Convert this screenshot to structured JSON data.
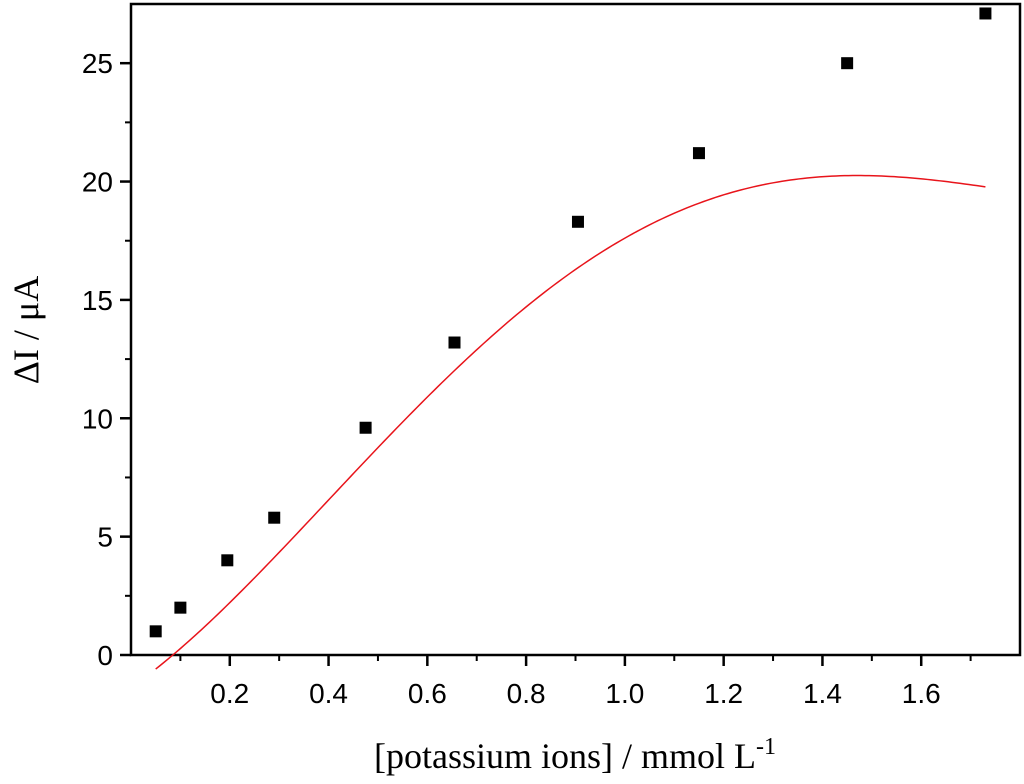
{
  "chart_data": {
    "type": "scatter",
    "xlabel": "[potassium ions] / mmol L",
    "xlabel_sup": "-1",
    "ylabel": "ΔI / μA",
    "xlim": [
      0.0,
      1.8
    ],
    "ylim": [
      0,
      27.5
    ],
    "x_ticks": [
      0.2,
      0.4,
      0.6,
      0.8,
      1.0,
      1.2,
      1.4,
      1.6
    ],
    "x_tick_labels": [
      "0.2",
      "0.4",
      "0.6",
      "0.8",
      "1.0",
      "1.2",
      "1.4",
      "1.6"
    ],
    "y_ticks": [
      0,
      5,
      10,
      15,
      20,
      25
    ],
    "y_tick_labels": [
      "0",
      "5",
      "10",
      "15",
      "20",
      "25"
    ],
    "grid": false,
    "series": [
      {
        "marker": "square",
        "color": "#000000",
        "x": [
          0.05,
          0.1,
          0.195,
          0.29,
          0.475,
          0.655,
          0.905,
          1.15,
          1.45,
          1.73
        ],
        "y": [
          1.0,
          2.0,
          4.0,
          5.8,
          9.6,
          13.2,
          18.3,
          21.2,
          25.0,
          27.1
        ]
      }
    ],
    "fit_curve": {
      "color": "#e8141b",
      "coefficients": [
        -1.37,
        14.55,
        20.87,
        -21.37,
        4.93
      ]
    }
  }
}
